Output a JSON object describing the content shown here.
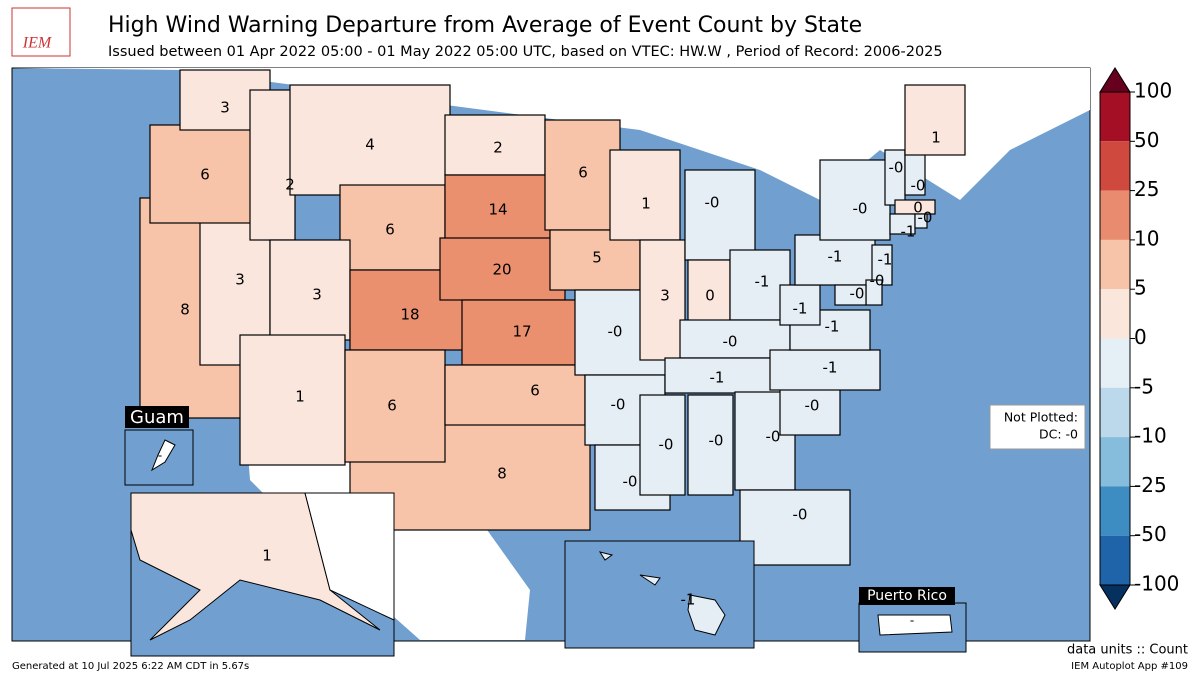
{
  "header": {
    "logo": "IEM",
    "title": "High Wind Warning Departure from Average of Event Count by State",
    "subtitle": "Issued between 01 Apr 2022 05:00 - 01 May 2022 05:00 UTC, based on VTEC: HW.W  , Period of Record: 2006-2025"
  },
  "states": [
    {
      "label": "8",
      "color": "#f8c4a9"
    },
    {
      "label": "3",
      "color": "#fbe6dd"
    },
    {
      "label": "6",
      "color": "#f8c4a9"
    },
    {
      "label": "3",
      "color": "#fbe6dd"
    },
    {
      "label": "2",
      "color": "#fbe6dd"
    },
    {
      "label": "4",
      "color": "#fbe6dd"
    },
    {
      "label": "6",
      "color": "#f8c4a9"
    },
    {
      "label": "3",
      "color": "#fbe6dd"
    },
    {
      "label": "18",
      "color": "#ea906f"
    },
    {
      "label": "1",
      "color": "#fbe6dd"
    },
    {
      "label": "8",
      "color": "#f8c4a9"
    },
    {
      "label": "6",
      "color": "#f8c4a9"
    },
    {
      "label": "2",
      "color": "#fbe6dd"
    },
    {
      "label": "14",
      "color": "#ea906f"
    },
    {
      "label": "20",
      "color": "#ea906f"
    },
    {
      "label": "17",
      "color": "#ea906f"
    },
    {
      "label": "6",
      "color": "#f8c4a9"
    },
    {
      "label": "6",
      "color": "#f8c4a9"
    },
    {
      "label": "5",
      "color": "#f8c4a9"
    },
    {
      "label": "-0",
      "color": "#e6eef5"
    },
    {
      "label": "-0",
      "color": "#e6eef5"
    },
    {
      "label": "-0",
      "color": "#e6eef5"
    },
    {
      "label": "1",
      "color": "#fbe6dd"
    },
    {
      "label": "3",
      "color": "#fbe6dd"
    },
    {
      "label": "-0",
      "color": "#e6eef5"
    },
    {
      "label": "0",
      "color": "#fbe6dd"
    },
    {
      "label": "-1",
      "color": "#e6eef5"
    },
    {
      "label": "-0",
      "color": "#e6eef5"
    },
    {
      "label": "-1",
      "color": "#e6eef5"
    },
    {
      "label": "-0",
      "color": "#e6eef5"
    },
    {
      "label": "-0",
      "color": "#e6eef5"
    },
    {
      "label": "-0",
      "color": "#e6eef5"
    },
    {
      "label": "-0",
      "color": "#e6eef5"
    },
    {
      "label": "-0",
      "color": "#e6eef5"
    },
    {
      "label": "-1",
      "color": "#e6eef5"
    },
    {
      "label": "-1",
      "color": "#e6eef5"
    },
    {
      "label": "-1",
      "color": "#e6eef5"
    },
    {
      "label": "-1",
      "color": "#e6eef5"
    },
    {
      "label": "-0",
      "color": "#e6eef5"
    },
    {
      "label": "-0",
      "color": "#e6eef5"
    },
    {
      "label": "-0",
      "color": "#e6eef5"
    },
    {
      "label": "1",
      "color": "#fbe6dd"
    },
    {
      "label": "0",
      "color": "#fbe6dd"
    },
    {
      "label": "-1",
      "color": "#e6eef5"
    },
    {
      "label": "-0",
      "color": "#e6eef5"
    },
    {
      "label": "-1",
      "color": "#e6eef5"
    },
    {
      "label": "-0",
      "color": "#e6eef5"
    },
    {
      "label": "-0",
      "color": "#e6eef5"
    }
  ],
  "insets": {
    "guam": {
      "title": "Guam",
      "label": "-"
    },
    "alaska": {
      "label": "1",
      "color": "#fbe6dd"
    },
    "hawaii": {
      "label": "-1",
      "color": "#e6eef5"
    },
    "puerto_rico": {
      "title": "Puerto Rico",
      "label": "-"
    }
  },
  "not_plotted": {
    "title": "Not Plotted:",
    "items": [
      "DC: -0"
    ]
  },
  "colorbar": {
    "ticks": [
      100,
      50,
      25,
      10,
      5,
      0,
      -5,
      -10,
      -25,
      -50,
      -100
    ],
    "colors": [
      "#67001f",
      "#a50f25",
      "#d0493f",
      "#e98b6e",
      "#f8c4a9",
      "#fbe6dc",
      "#e5eff6",
      "#bcd9eb",
      "#86bcdc",
      "#3d8cc2",
      "#1f63a8",
      "#063060"
    ]
  },
  "footer": {
    "units": "data units :: Count",
    "generated": "Generated at 10 Jul 2025 6:22 AM CDT in 5.67s",
    "app": "IEM Autoplot App #109"
  }
}
